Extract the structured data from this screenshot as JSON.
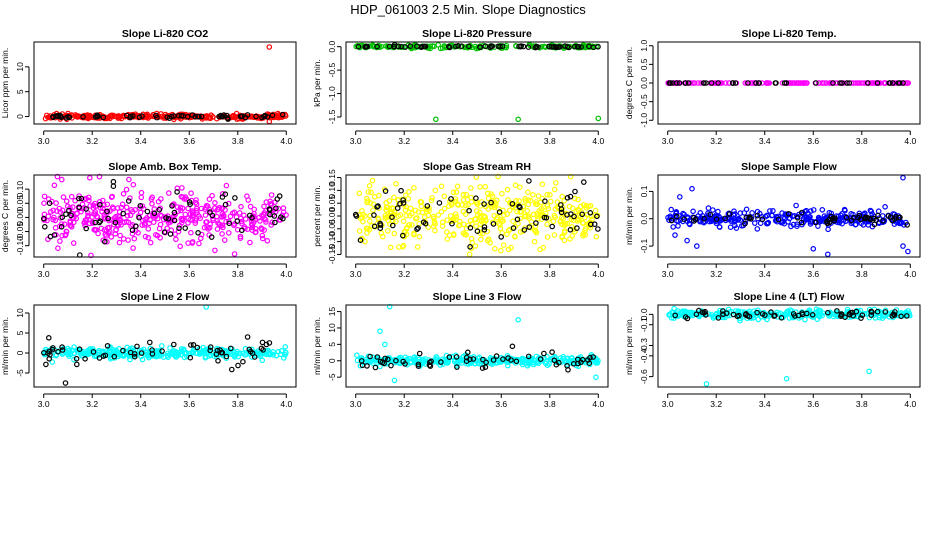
{
  "figure": {
    "title": "HDP_061003  2.5 Min. Slope Diagnostics"
  },
  "chart_data": [
    {
      "type": "scatter",
      "title": "Slope Li-820 CO2",
      "ylabel": "Licor ppm per min.",
      "xlim": [
        2.96,
        4.04
      ],
      "ylim": [
        -1.5,
        15
      ],
      "xticks": [
        3.0,
        3.2,
        3.4,
        3.6,
        3.8,
        4.0
      ],
      "xtick_labels": [
        "3.0",
        "3.2",
        "3.4",
        "3.6",
        "3.8",
        "4.0"
      ],
      "yticks": [
        0,
        5,
        10
      ],
      "ytick_labels": [
        "0",
        "5",
        "10"
      ],
      "series": [
        {
          "name": "main",
          "color": "#ff0000",
          "count": 280,
          "center": 0,
          "spread": 0.45,
          "outliers": [
            {
              "x": 3.93,
              "y": 14.0
            },
            {
              "x": 3.93,
              "y": -1.0
            }
          ]
        },
        {
          "name": "flagged",
          "color": "#000000",
          "count": 60,
          "center": 0,
          "spread": 0.35,
          "outliers": []
        }
      ]
    },
    {
      "type": "scatter",
      "title": "Slope Li-820 Pressure",
      "ylabel": "kPa per min.",
      "xlim": [
        2.96,
        4.04
      ],
      "ylim": [
        -1.65,
        0.1
      ],
      "xticks": [
        3.0,
        3.2,
        3.4,
        3.6,
        3.8,
        4.0
      ],
      "xtick_labels": [
        "3.0",
        "3.2",
        "3.4",
        "3.6",
        "3.8",
        "4.0"
      ],
      "yticks": [
        0.0,
        -0.5,
        -1.0,
        -1.5
      ],
      "ytick_labels": [
        "0.0",
        "-0.5",
        "-1.0",
        "-1.5"
      ],
      "series": [
        {
          "name": "main",
          "color": "#00c000",
          "count": 180,
          "center": 0.0,
          "spread": 0.03,
          "outliers": [
            {
              "x": 3.33,
              "y": -1.55
            },
            {
              "x": 3.67,
              "y": -1.55
            },
            {
              "x": 4.0,
              "y": -1.53
            }
          ]
        },
        {
          "name": "flagged",
          "color": "#000000",
          "count": 60,
          "center": 0.0,
          "spread": 0.02,
          "outliers": []
        }
      ]
    },
    {
      "type": "scatter",
      "title": "Slope Li-820 Temp.",
      "ylabel": "degrees C per min.",
      "xlim": [
        2.96,
        4.04
      ],
      "ylim": [
        -1.1,
        1.1
      ],
      "xticks": [
        3.0,
        3.2,
        3.4,
        3.6,
        3.8,
        4.0
      ],
      "xtick_labels": [
        "3.0",
        "3.2",
        "3.4",
        "3.6",
        "3.8",
        "4.0"
      ],
      "yticks": [
        1.0,
        0.5,
        0.0,
        -0.5,
        -1.0
      ],
      "ytick_labels": [
        "1.0",
        "0.5",
        "0.0",
        "-0.5",
        "-1.0"
      ],
      "series": [
        {
          "name": "main",
          "color": "#ff00ff",
          "count": 150,
          "center": 0.0,
          "spread": 0.0,
          "outliers": []
        },
        {
          "name": "flagged",
          "color": "#000000",
          "count": 40,
          "center": 0.0,
          "spread": 0.0,
          "outliers": []
        }
      ]
    },
    {
      "type": "scatter",
      "title": "Slope Amb. Box Temp.",
      "ylabel": "degrees C per min.",
      "xlim": [
        2.96,
        4.04
      ],
      "ylim": [
        -0.14,
        0.15
      ],
      "xticks": [
        3.0,
        3.2,
        3.4,
        3.6,
        3.8,
        4.0
      ],
      "xtick_labels": [
        "3.0",
        "3.2",
        "3.4",
        "3.6",
        "3.8",
        "4.0"
      ],
      "yticks": [
        0.1,
        0.05,
        0.0,
        -0.05,
        -0.1
      ],
      "ytick_labels": [
        "0.10",
        "0.05",
        "0.00",
        "-0.05",
        "-0.10"
      ],
      "series": [
        {
          "name": "main",
          "color": "#ff00ff",
          "count": 420,
          "center": 0.0,
          "spread": 0.1,
          "outliers": [
            {
              "x": 3.19,
              "y": 0.14
            }
          ]
        },
        {
          "name": "flagged",
          "color": "#000000",
          "count": 70,
          "center": 0.0,
          "spread": 0.09,
          "outliers": []
        }
      ]
    },
    {
      "type": "scatter",
      "title": "Slope Gas Stream RH",
      "ylabel": "percent per min.",
      "xlim": [
        2.96,
        4.04
      ],
      "ylim": [
        -0.16,
        0.16
      ],
      "xticks": [
        3.0,
        3.2,
        3.4,
        3.6,
        3.8,
        4.0
      ],
      "xtick_labels": [
        "3.0",
        "3.2",
        "3.4",
        "3.6",
        "3.8",
        "4.0"
      ],
      "yticks": [
        0.15,
        0.1,
        0.05,
        0.0,
        -0.05,
        -0.1,
        -0.15
      ],
      "ytick_labels": [
        "0.15",
        "0.10",
        "0.05",
        "0.00",
        "-0.05",
        "-0.10",
        "-0.15"
      ],
      "series": [
        {
          "name": "main",
          "color": "#ffff00",
          "count": 420,
          "center": 0.0,
          "spread": 0.11,
          "outliers": [
            {
              "x": 3.47,
              "y": -0.15
            }
          ]
        },
        {
          "name": "flagged",
          "color": "#000000",
          "count": 70,
          "center": 0.0,
          "spread": 0.1,
          "outliers": []
        }
      ]
    },
    {
      "type": "scatter",
      "title": "Slope Sample Flow",
      "ylabel": "ml/min per min.",
      "xlim": [
        2.96,
        4.04
      ],
      "ylim": [
        -0.14,
        0.16
      ],
      "xticks": [
        3.0,
        3.2,
        3.4,
        3.6,
        3.8,
        4.0
      ],
      "xtick_labels": [
        "3.0",
        "3.2",
        "3.4",
        "3.6",
        "3.8",
        "4.0"
      ],
      "yticks": [
        0.1,
        0.0,
        -0.1
      ],
      "ytick_labels": [
        "0.1",
        "0.0",
        "-0.1"
      ],
      "series": [
        {
          "name": "main",
          "color": "#0000ff",
          "count": 300,
          "center": 0.0,
          "spread": 0.03,
          "outliers": [
            {
              "x": 3.03,
              "y": -0.06
            },
            {
              "x": 3.05,
              "y": 0.08
            },
            {
              "x": 3.08,
              "y": -0.08
            },
            {
              "x": 3.1,
              "y": 0.11
            },
            {
              "x": 3.12,
              "y": -0.1
            },
            {
              "x": 3.6,
              "y": -0.11
            },
            {
              "x": 3.66,
              "y": -0.13
            },
            {
              "x": 3.97,
              "y": 0.15
            },
            {
              "x": 3.97,
              "y": -0.1
            },
            {
              "x": 3.99,
              "y": -0.12
            }
          ]
        },
        {
          "name": "flagged",
          "color": "#000000",
          "count": 60,
          "center": 0.0,
          "spread": 0.02,
          "outliers": []
        }
      ]
    },
    {
      "type": "scatter",
      "title": "Slope Line 2 Flow",
      "ylabel": "ml/min per min.",
      "xlim": [
        2.96,
        4.04
      ],
      "ylim": [
        -8.5,
        12
      ],
      "xticks": [
        3.0,
        3.2,
        3.4,
        3.6,
        3.8,
        4.0
      ],
      "xtick_labels": [
        "3.0",
        "3.2",
        "3.4",
        "3.6",
        "3.8",
        "4.0"
      ],
      "yticks": [
        10,
        5,
        0,
        -5
      ],
      "ytick_labels": [
        "10",
        "5",
        "0",
        "-5"
      ],
      "series": [
        {
          "name": "main",
          "color": "#00ffff",
          "count": 320,
          "center": 0.0,
          "spread": 1.3,
          "outliers": [
            {
              "x": 3.67,
              "y": 11.5
            }
          ]
        },
        {
          "name": "flagged",
          "color": "#000000",
          "count": 60,
          "center": 0.0,
          "spread": 3.2,
          "outliers": [
            {
              "x": 3.09,
              "y": -7.5
            }
          ]
        }
      ]
    },
    {
      "type": "scatter",
      "title": "Slope Line 3 Flow",
      "ylabel": "ml/min per min.",
      "xlim": [
        2.96,
        4.04
      ],
      "ylim": [
        -8,
        17
      ],
      "xticks": [
        3.0,
        3.2,
        3.4,
        3.6,
        3.8,
        4.0
      ],
      "xtick_labels": [
        "3.0",
        "3.2",
        "3.4",
        "3.6",
        "3.8",
        "4.0"
      ],
      "yticks": [
        15,
        10,
        5,
        0,
        -5
      ],
      "ytick_labels": [
        "15",
        "10",
        "5",
        "0",
        "-5"
      ],
      "series": [
        {
          "name": "main",
          "color": "#00ffff",
          "count": 320,
          "center": 0.0,
          "spread": 1.3,
          "outliers": [
            {
              "x": 3.1,
              "y": 9.0
            },
            {
              "x": 3.12,
              "y": 5.0
            },
            {
              "x": 3.14,
              "y": 16.5
            },
            {
              "x": 3.16,
              "y": -6.0
            },
            {
              "x": 3.67,
              "y": 12.5
            },
            {
              "x": 3.99,
              "y": -5.0
            }
          ]
        },
        {
          "name": "flagged",
          "color": "#000000",
          "count": 60,
          "center": 0.0,
          "spread": 2.8,
          "outliers": []
        }
      ]
    },
    {
      "type": "scatter",
      "title": "Slope Line 4 (LT) Flow",
      "ylabel": "ml/min per min.",
      "xlim": [
        2.96,
        4.04
      ],
      "ylim": [
        -0.7,
        0.09
      ],
      "xticks": [
        3.0,
        3.2,
        3.4,
        3.6,
        3.8,
        4.0
      ],
      "xtick_labels": [
        "3.0",
        "3.2",
        "3.4",
        "3.6",
        "3.8",
        "4.0"
      ],
      "yticks": [
        0.0,
        -0.1,
        -0.3,
        -0.4,
        -0.6
      ],
      "ytick_labels": [
        "0.0",
        "-0.1",
        "-0.3",
        "-0.4",
        "-0.6"
      ],
      "series": [
        {
          "name": "main",
          "color": "#00ffff",
          "count": 300,
          "center": 0.0,
          "spread": 0.04,
          "outliers": [
            {
              "x": 3.16,
              "y": -0.67
            },
            {
              "x": 3.49,
              "y": -0.62
            },
            {
              "x": 3.83,
              "y": -0.55
            }
          ]
        },
        {
          "name": "flagged",
          "color": "#000000",
          "count": 60,
          "center": 0.0,
          "spread": 0.03,
          "outliers": []
        }
      ]
    }
  ]
}
